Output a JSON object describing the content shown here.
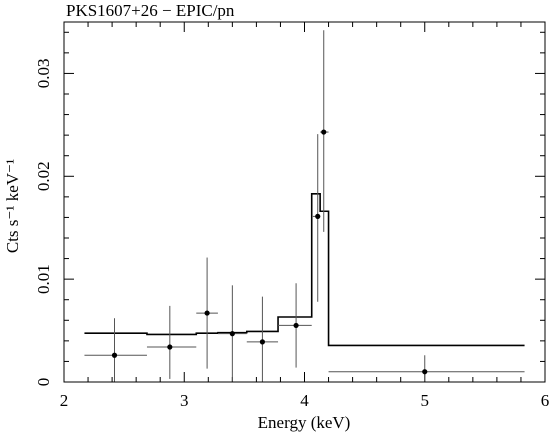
{
  "chart_data": {
    "type": "scatter",
    "title": "PKS1607+26 − EPIC/pn",
    "xlabel": "Energy (keV)",
    "ylabel": "Cts s⁻¹ keV⁻¹",
    "xlim": [
      2,
      6
    ],
    "ylim": [
      0,
      0.035
    ],
    "x_ticks": [
      2,
      3,
      4,
      5,
      6
    ],
    "x_tick_labels": [
      "2",
      "3",
      "4",
      "5",
      "6"
    ],
    "y_ticks": [
      0,
      0.01,
      0.02,
      0.03
    ],
    "y_tick_labels": [
      "0",
      "0.01",
      "0.02",
      "0.03"
    ],
    "grid": false,
    "series": [
      {
        "kind": "errorbar-points",
        "points": [
          {
            "x": 2.42,
            "xerr": [
              2.17,
              2.69
            ],
            "y": 0.0026,
            "yerr": [
              0.0,
              0.0062
            ]
          },
          {
            "x": 2.88,
            "xerr": [
              2.69,
              3.1
            ],
            "y": 0.0034,
            "yerr": [
              0.0003,
              0.0074
            ]
          },
          {
            "x": 3.19,
            "xerr": [
              3.1,
              3.28
            ],
            "y": 0.0067,
            "yerr": [
              0.0013,
              0.0121
            ]
          },
          {
            "x": 3.4,
            "xerr": [
              3.28,
              3.52
            ],
            "y": 0.0047,
            "yerr": [
              0.0,
              0.0094
            ]
          },
          {
            "x": 3.65,
            "xerr": [
              3.52,
              3.78
            ],
            "y": 0.0039,
            "yerr": [
              0.0,
              0.0083
            ]
          },
          {
            "x": 3.93,
            "xerr": [
              3.78,
              4.06
            ],
            "y": 0.0055,
            "yerr": [
              0.0014,
              0.0096
            ]
          },
          {
            "x": 4.11,
            "xerr": [
              4.07,
              4.13
            ],
            "y": 0.0161,
            "yerr": [
              0.0078,
              0.0241
            ]
          },
          {
            "x": 4.16,
            "xerr": [
              4.13,
              4.2
            ],
            "y": 0.0243,
            "yerr": [
              0.0146,
              0.0342
            ]
          },
          {
            "x": 5.0,
            "xerr": [
              4.2,
              5.83
            ],
            "y": 0.001,
            "yerr": [
              0.0,
              0.0026
            ]
          }
        ]
      },
      {
        "kind": "model-step",
        "steps": [
          {
            "x0": 2.17,
            "x1": 2.69,
            "y": 0.00475
          },
          {
            "x0": 2.69,
            "x1": 3.1,
            "y": 0.00462
          },
          {
            "x0": 3.1,
            "x1": 3.28,
            "y": 0.00475
          },
          {
            "x0": 3.28,
            "x1": 3.52,
            "y": 0.0048
          },
          {
            "x0": 3.52,
            "x1": 3.78,
            "y": 0.00492
          },
          {
            "x0": 3.78,
            "x1": 4.06,
            "y": 0.00632
          },
          {
            "x0": 4.06,
            "x1": 4.13,
            "y": 0.0183
          },
          {
            "x0": 4.13,
            "x1": 4.2,
            "y": 0.0166
          },
          {
            "x0": 4.2,
            "x1": 5.83,
            "y": 0.00355
          }
        ]
      }
    ]
  }
}
